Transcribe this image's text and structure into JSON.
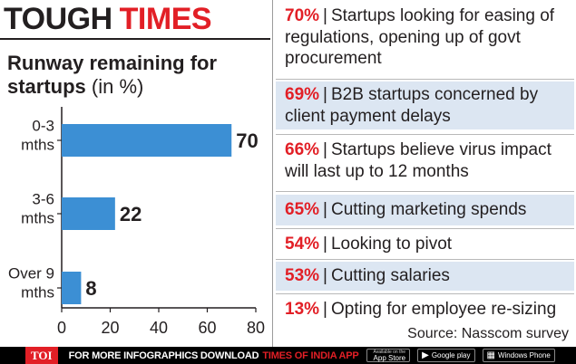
{
  "headline": {
    "word1": "TOUGH",
    "word2": "TIMES"
  },
  "chart_title": {
    "main": "Runway remaining for startups",
    "unit": "(in %)"
  },
  "chart_data": {
    "type": "bar",
    "orientation": "horizontal",
    "title": "Runway remaining for startups (in %)",
    "categories": [
      [
        "0-3",
        "mths"
      ],
      [
        "3-6",
        "mths"
      ],
      [
        "Over 9",
        "mths"
      ]
    ],
    "values": [
      70,
      22,
      8
    ],
    "value_labels": [
      "70",
      "22",
      "8"
    ],
    "xlim": [
      0,
      80
    ],
    "xticks": [
      0,
      20,
      40,
      60,
      80
    ],
    "tick_labels": [
      "0",
      "20",
      "40",
      "60",
      "80"
    ],
    "bar_color": "#3c8fd4",
    "grid": false,
    "legend": "none"
  },
  "stats": [
    {
      "pct": "70%",
      "text": "Startups looking for easing of regulations, opening up of govt procurement",
      "shaded": false
    },
    {
      "pct": "69%",
      "text": "B2B startups concerned by client payment delays",
      "shaded": true
    },
    {
      "pct": "66%",
      "text": "Startups believe virus impact will last up to 12 months",
      "shaded": false
    },
    {
      "pct": "65%",
      "text": "Cutting marketing spends",
      "shaded": true
    },
    {
      "pct": "54%",
      "text": "Looking to pivot",
      "shaded": false
    },
    {
      "pct": "53%",
      "text": "Cutting salaries",
      "shaded": true
    },
    {
      "pct": "13%",
      "text": "Opting for employee re-sizing",
      "shaded": false
    }
  ],
  "source": "Source: Nasscom survey",
  "footer": {
    "logo": "TOI",
    "text": "FOR MORE INFOGRAPHICS DOWNLOAD",
    "app_name": "TIMES OF INDIA APP",
    "stores": [
      {
        "icon": "apple-icon",
        "glyph": "",
        "small": "Available on the",
        "label": "App Store"
      },
      {
        "icon": "play-icon",
        "glyph": "▶",
        "small": "",
        "label": "Google play"
      },
      {
        "icon": "windows-icon",
        "glyph": "▦",
        "small": "",
        "label": "Windows Phone"
      }
    ]
  },
  "colors": {
    "accent_red": "#e21f26",
    "bar_blue": "#3c8fd4",
    "shade_blue": "#dce6f2"
  }
}
